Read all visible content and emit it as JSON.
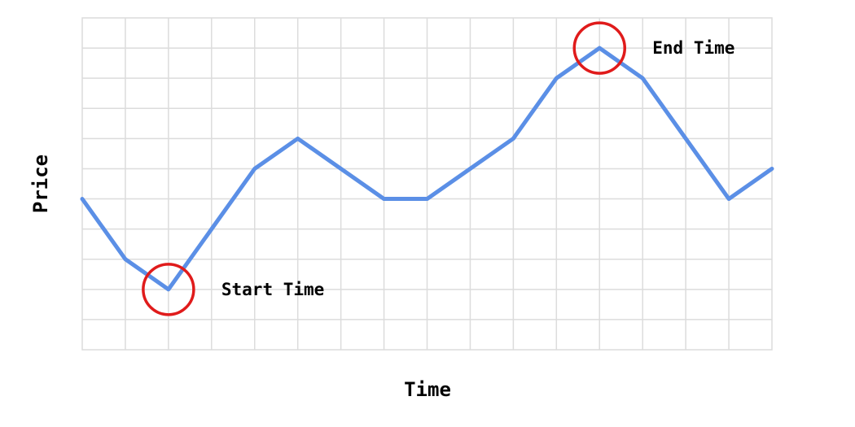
{
  "chart_data": {
    "type": "line",
    "xlabel": "Time",
    "ylabel": "Price",
    "xlim": [
      0,
      16
    ],
    "ylim": [
      0,
      11
    ],
    "grid": true,
    "series": [
      {
        "x": [
          0,
          1,
          2,
          3,
          4,
          5,
          6,
          7,
          8,
          9,
          10,
          11,
          12,
          13,
          14,
          15,
          16
        ],
        "y": [
          5,
          3,
          2,
          4,
          6,
          7,
          6,
          5,
          5,
          6,
          7,
          9,
          10,
          9,
          7,
          5,
          6
        ],
        "color": "#5b8fe6"
      }
    ],
    "annotations": [
      {
        "label": "Start Time",
        "x": 2,
        "y": 2,
        "color": "#e01b1b"
      },
      {
        "label": "End Time",
        "x": 12,
        "y": 10,
        "color": "#e01b1b"
      }
    ]
  }
}
